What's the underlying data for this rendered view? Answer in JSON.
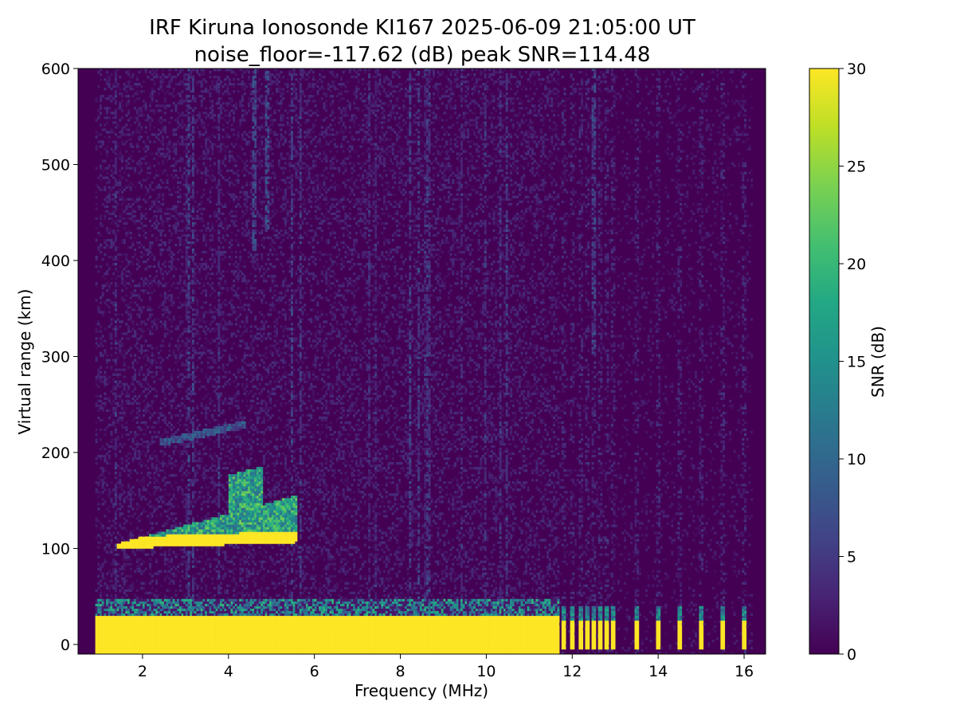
{
  "chart_data": {
    "type": "heatmap",
    "title": "IRF Kiruna Ionosonde KI167 2025-06-09 21:05:00  UT",
    "subtitle": "noise_floor=-117.62 (dB) peak SNR=114.48",
    "xlabel": "Frequency (MHz)",
    "ylabel": "Virtual range (km)",
    "xlim": [
      0.5,
      16.5
    ],
    "ylim": [
      -10,
      600
    ],
    "xticks": [
      "2",
      "4",
      "6",
      "8",
      "10",
      "12",
      "14",
      "16"
    ],
    "yticks": [
      "0",
      "100",
      "200",
      "300",
      "400",
      "500",
      "600"
    ],
    "colorbar": {
      "label": "SNR (dB)",
      "range": [
        0,
        30
      ],
      "ticks": [
        "0",
        "5",
        "10",
        "15",
        "20",
        "25",
        "30"
      ],
      "colormap": "viridis"
    },
    "colors": {
      "low": "#440154",
      "mid": "#21918c",
      "high": "#fde725"
    },
    "features": [
      {
        "label": "ground clutter band",
        "freq_range_mhz": [
          0.9,
          11.7
        ],
        "range_km": [
          0,
          30
        ],
        "snr_db": 30
      },
      {
        "label": "noise halo above clutter",
        "freq_range_mhz": [
          0.9,
          11.7
        ],
        "range_km": [
          30,
          48
        ],
        "snr_db": 14
      },
      {
        "label": "E-layer trace",
        "freq_range_mhz": [
          1.4,
          5.6
        ],
        "range_km": [
          100,
          185
        ],
        "snr_db": 25
      },
      {
        "label": "second-hop E trace",
        "freq_range_mhz": [
          2.4,
          4.4
        ],
        "range_km": [
          200,
          240
        ],
        "snr_db": 7
      },
      {
        "label": "vertical interference line",
        "freq_mhz": 4.6,
        "range_km": [
          410,
          600
        ],
        "snr_db": 6
      },
      {
        "label": "vertical interference line",
        "freq_mhz": 4.9,
        "range_km": [
          430,
          600
        ],
        "snr_db": 6
      },
      {
        "label": "vertical interference line",
        "freq_mhz": 12.5,
        "range_km": [
          300,
          600
        ],
        "snr_db": 5
      },
      {
        "label": "discrete high-frequency channels",
        "freq_mhz": [
          11.8,
          12.0,
          12.2,
          12.35,
          12.5,
          12.65,
          12.8,
          12.95,
          13.5,
          14.0,
          14.5,
          15.0,
          15.5,
          16.0
        ],
        "range_km": [
          -5,
          25
        ],
        "snr_db": 30
      }
    ]
  }
}
